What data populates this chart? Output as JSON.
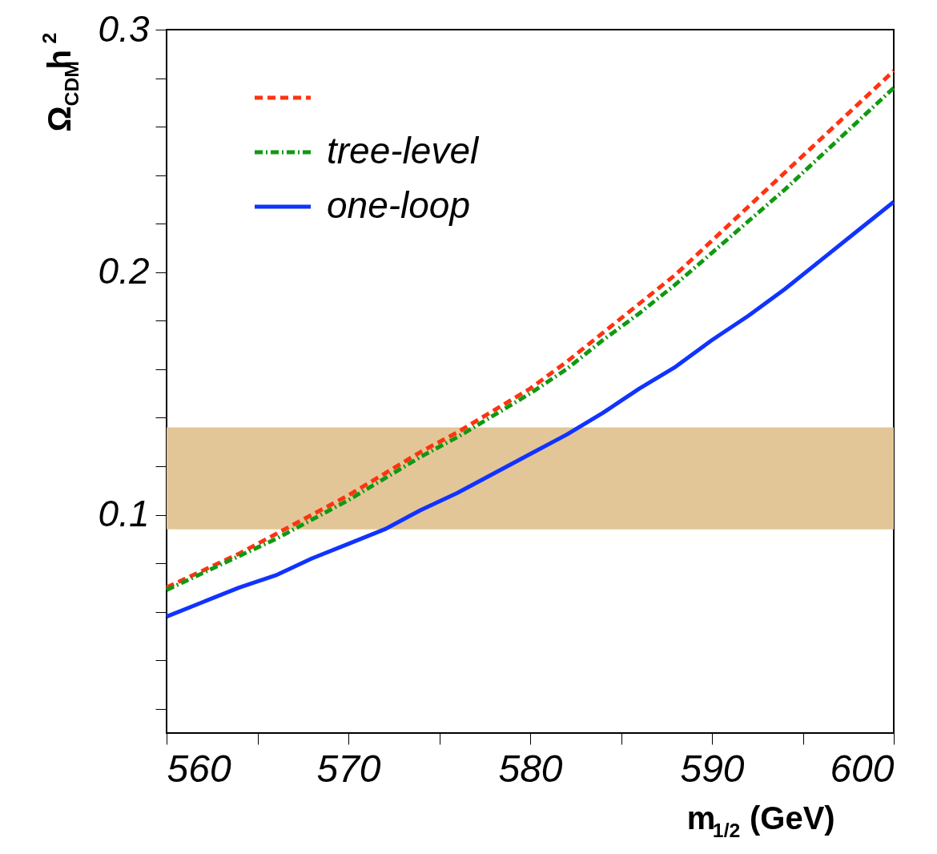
{
  "chart_data": {
    "type": "line",
    "xlabel": "m$_{1/2}$ (GeV)",
    "ylabel": "Ω$_{CDM}$h$^{2}$",
    "xlim": [
      560,
      600
    ],
    "ylim": [
      0.01,
      0.3
    ],
    "xticks": [
      560,
      {
        "value": 565,
        "label": null
      },
      570,
      {
        "value": 575,
        "label": null
      },
      580,
      {
        "value": 585,
        "label": null
      },
      590,
      {
        "value": 595,
        "label": null
      },
      600
    ],
    "yticks": [
      {
        "value": 0.02,
        "label": null
      },
      {
        "value": 0.04,
        "label": null
      },
      {
        "value": 0.06,
        "label": null
      },
      {
        "value": 0.08,
        "label": null
      },
      0.1,
      {
        "value": 0.12,
        "label": null
      },
      {
        "value": 0.14,
        "label": null
      },
      {
        "value": 0.16,
        "label": null
      },
      {
        "value": 0.18,
        "label": null
      },
      0.2,
      {
        "value": 0.22,
        "label": null
      },
      {
        "value": 0.24,
        "label": null
      },
      {
        "value": 0.26,
        "label": null
      },
      {
        "value": 0.28,
        "label": null
      },
      0.3
    ],
    "bands": [
      {
        "axis": "y",
        "from": 0.094,
        "to": 0.136,
        "label": null,
        "color": "#e3c697"
      }
    ],
    "grid": false,
    "legend": "top left",
    "series": [
      {
        "color": "#ff3311",
        "line_style": "dashed",
        "x": [
          560,
          562,
          564,
          566,
          568,
          570,
          572,
          574,
          576,
          578,
          580,
          582,
          584,
          586,
          588,
          590,
          592,
          594,
          596,
          598,
          600
        ],
        "values": [
          0.07,
          0.077,
          0.084,
          0.092,
          0.1,
          0.108,
          0.117,
          0.126,
          0.134,
          0.143,
          0.152,
          0.163,
          0.175,
          0.187,
          0.199,
          0.213,
          0.227,
          0.241,
          0.255,
          0.269,
          0.283
        ]
      },
      {
        "name": "tree-level",
        "color": "#119911",
        "line_style": "dashdot",
        "x": [
          560,
          562,
          564,
          566,
          568,
          570,
          572,
          574,
          576,
          578,
          580,
          582,
          584,
          586,
          588,
          590,
          592,
          594,
          596,
          598,
          600
        ],
        "values": [
          0.069,
          0.076,
          0.083,
          0.09,
          0.098,
          0.106,
          0.115,
          0.124,
          0.132,
          0.141,
          0.15,
          0.16,
          0.172,
          0.183,
          0.195,
          0.208,
          0.221,
          0.234,
          0.248,
          0.262,
          0.276
        ]
      },
      {
        "name": "one-loop",
        "color": "#1133ff",
        "line_style": "solid",
        "x": [
          560,
          562,
          564,
          566,
          568,
          570,
          572,
          574,
          576,
          578,
          580,
          582,
          584,
          586,
          588,
          590,
          592,
          594,
          596,
          598,
          600
        ],
        "values": [
          0.058,
          0.064,
          0.07,
          0.075,
          0.082,
          0.088,
          0.094,
          0.102,
          0.109,
          0.117,
          0.125,
          0.133,
          0.142,
          0.152,
          0.161,
          0.172,
          0.182,
          0.193,
          0.205,
          0.217,
          0.229
        ]
      }
    ]
  }
}
